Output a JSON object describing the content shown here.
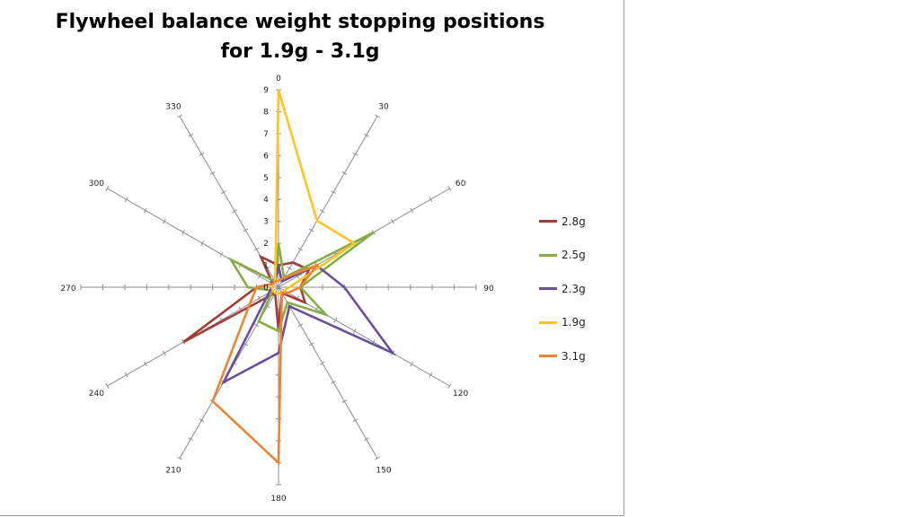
{
  "chart_data": {
    "type": "radar",
    "title": [
      "Flywheel balance weight stopping positions",
      "for 1.9g - 3.1g"
    ],
    "categories": [
      "0",
      "30",
      "60",
      "90",
      "120",
      "150",
      "180",
      "210",
      "240",
      "270",
      "300",
      "330"
    ],
    "radial_ticks": [
      "0",
      "1",
      "2",
      "3",
      "4",
      "5",
      "6",
      "7",
      "8",
      "9"
    ],
    "rlim": [
      0,
      9
    ],
    "legend_position": "right",
    "series": [
      {
        "name": "2.8g",
        "color": "#a33d3a",
        "values": [
          1,
          1.3,
          1.6,
          1,
          1.4,
          0.3,
          2,
          0.3,
          5,
          1,
          0.3,
          1.6
        ]
      },
      {
        "name": "2.5g",
        "color": "#86ad43",
        "values": [
          2,
          0.5,
          5,
          1,
          2.5,
          0.8,
          2,
          1.8,
          0.3,
          1.4,
          2.5,
          0.3
        ]
      },
      {
        "name": "2.3g",
        "color": "#6a4d9b",
        "values": [
          1,
          0.3,
          2,
          3,
          6,
          1,
          3,
          5,
          0.5,
          0.3,
          0.3,
          0.3
        ]
      },
      {
        "name": "1.9g",
        "color": "#ffc322",
        "values": [
          9,
          3.5,
          4,
          0.5,
          0.3,
          0.3,
          0.3,
          0.3,
          0.3,
          0.3,
          0.3,
          0.3
        ]
      },
      {
        "name": "3.1g",
        "color": "#ec8533",
        "values": [
          0.3,
          0.5,
          2,
          1,
          0.5,
          0.3,
          8,
          6,
          1.5,
          1,
          0.3,
          0.3
        ]
      }
    ]
  }
}
